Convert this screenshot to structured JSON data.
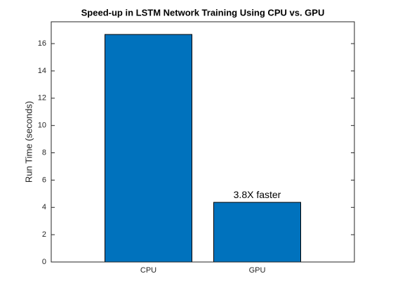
{
  "chart_data": {
    "type": "bar",
    "title": "Speed-up in LSTM Network Training Using CPU vs. GPU",
    "ylabel": "Run Time (seconds)",
    "categories": [
      "CPU",
      "GPU"
    ],
    "values": [
      16.67,
      4.37
    ],
    "color": "#0072bd",
    "annotation": "3.8X faster",
    "ylim": [
      0,
      17.6
    ],
    "yticks": [
      0,
      2,
      4,
      6,
      8,
      10,
      12,
      14,
      16
    ],
    "grid": false
  }
}
